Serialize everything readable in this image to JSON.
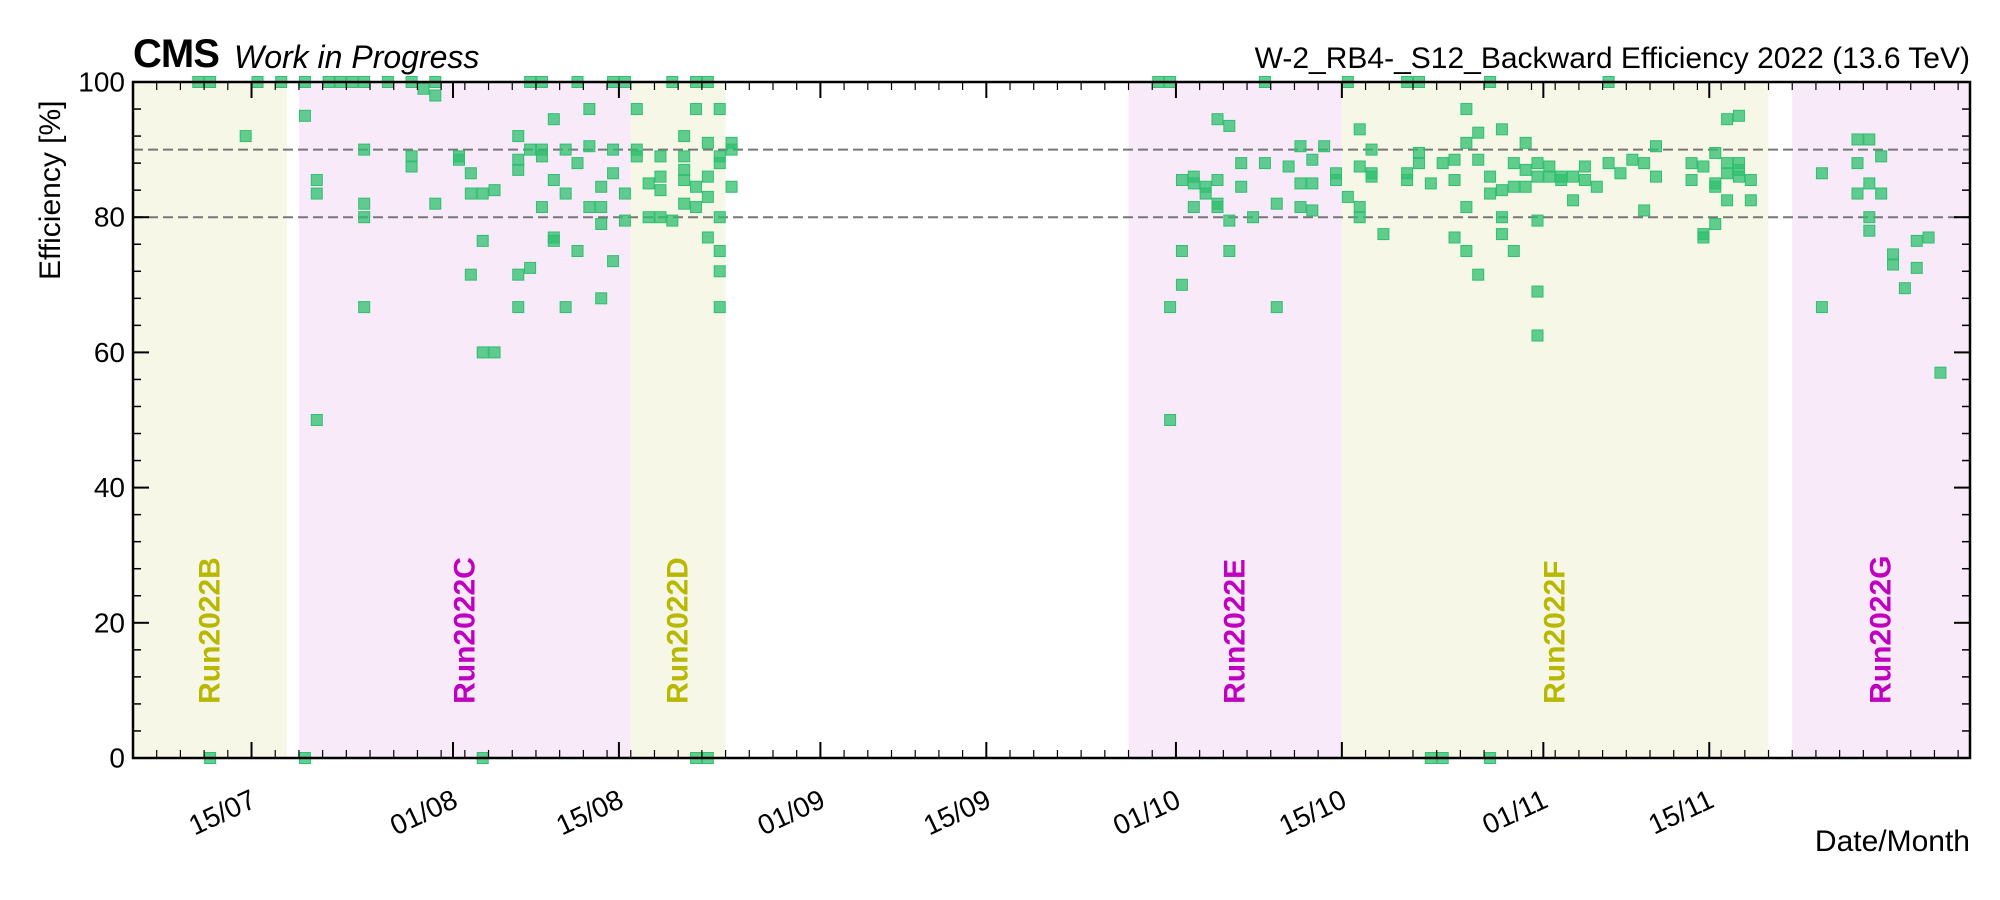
{
  "header": {
    "experiment": "CMS",
    "status": "Work in Progress",
    "title": "W-2_RB4-_S12_Backward Efficiency 2022 (13.6 TeV)"
  },
  "chart_data": {
    "type": "scatter",
    "title": "W-2_RB4-_S12_Backward Efficiency 2022 (13.6 TeV)",
    "xlabel": "Date/Month",
    "ylabel": "Efficiency [%]",
    "ylim": [
      0,
      100
    ],
    "xlim": [
      "2022-07-05",
      "2022-12-07"
    ],
    "yticks": [
      0,
      20,
      40,
      60,
      80,
      100
    ],
    "xticks": [
      {
        "date": "2022-07-15",
        "label": "15/07"
      },
      {
        "date": "2022-08-01",
        "label": "01/08"
      },
      {
        "date": "2022-08-15",
        "label": "15/08"
      },
      {
        "date": "2022-09-01",
        "label": "01/09"
      },
      {
        "date": "2022-09-15",
        "label": "15/09"
      },
      {
        "date": "2022-10-01",
        "label": "01/10"
      },
      {
        "date": "2022-10-15",
        "label": "15/10"
      },
      {
        "date": "2022-11-01",
        "label": "01/11"
      },
      {
        "date": "2022-11-15",
        "label": "15/11"
      }
    ],
    "reference_lines": [
      80,
      90
    ],
    "colors": {
      "marker": "#2fbf6f",
      "run_odd_text": "#b8b800",
      "run_even_text": "#c000c0",
      "run_odd_band": "#f7f7e8",
      "run_even_band": "#f8eaf8",
      "ref_line": "#777777"
    },
    "runs": [
      {
        "name": "Run2022B",
        "start": "2022-07-05",
        "end": "2022-07-18",
        "style": "odd"
      },
      {
        "name": "Run2022C",
        "start": "2022-07-19",
        "end": "2022-08-16",
        "style": "even"
      },
      {
        "name": "Run2022D",
        "start": "2022-08-16",
        "end": "2022-08-24",
        "style": "odd"
      },
      {
        "name": "Run2022E",
        "start": "2022-09-27",
        "end": "2022-10-15",
        "style": "even"
      },
      {
        "name": "Run2022F",
        "start": "2022-10-15",
        "end": "2022-11-20",
        "style": "odd"
      },
      {
        "name": "Run2022G",
        "start": "2022-11-22",
        "end": "2022-12-07",
        "style": "even"
      }
    ],
    "series": [
      {
        "points": [
          [
            "2022-07-10",
            100
          ],
          [
            "2022-07-11",
            100
          ],
          [
            "2022-07-15",
            100
          ],
          [
            "2022-07-11",
            0
          ],
          [
            "2022-07-14",
            92
          ],
          [
            "2022-07-17",
            100
          ],
          [
            "2022-07-19",
            100
          ],
          [
            "2022-07-19",
            0
          ],
          [
            "2022-07-19",
            95
          ],
          [
            "2022-07-20",
            50
          ],
          [
            "2022-07-20",
            85.5
          ],
          [
            "2022-07-20",
            83.5
          ],
          [
            "2022-07-21",
            100
          ],
          [
            "2022-07-22",
            100
          ],
          [
            "2022-07-23",
            100
          ],
          [
            "2022-07-24",
            100
          ],
          [
            "2022-07-24",
            90
          ],
          [
            "2022-07-24",
            82
          ],
          [
            "2022-07-24",
            80
          ],
          [
            "2022-07-24",
            66.7
          ],
          [
            "2022-07-26",
            100
          ],
          [
            "2022-07-28",
            100
          ],
          [
            "2022-07-28",
            89
          ],
          [
            "2022-07-28",
            87.5
          ],
          [
            "2022-07-29",
            99
          ],
          [
            "2022-07-30",
            100
          ],
          [
            "2022-07-30",
            98
          ],
          [
            "2022-07-30",
            82
          ],
          [
            "2022-08-01",
            89
          ],
          [
            "2022-08-01",
            88.5
          ],
          [
            "2022-08-02",
            71.5
          ],
          [
            "2022-08-02",
            86.5
          ],
          [
            "2022-08-02",
            83.5
          ],
          [
            "2022-08-03",
            83.5
          ],
          [
            "2022-08-03",
            76.5
          ],
          [
            "2022-08-03",
            0
          ],
          [
            "2022-08-03",
            60
          ],
          [
            "2022-08-04",
            60
          ],
          [
            "2022-08-04",
            84
          ],
          [
            "2022-08-06",
            92
          ],
          [
            "2022-08-06",
            71.5
          ],
          [
            "2022-08-06",
            66.7
          ],
          [
            "2022-08-06",
            87
          ],
          [
            "2022-08-06",
            88.5
          ],
          [
            "2022-08-07",
            90
          ],
          [
            "2022-08-07",
            100
          ],
          [
            "2022-08-07",
            72.5
          ],
          [
            "2022-08-08",
            81.5
          ],
          [
            "2022-08-08",
            90
          ],
          [
            "2022-08-08",
            89
          ],
          [
            "2022-08-08",
            100
          ],
          [
            "2022-08-09",
            76.5
          ],
          [
            "2022-08-09",
            77
          ],
          [
            "2022-08-09",
            94.5
          ],
          [
            "2022-08-09",
            85.5
          ],
          [
            "2022-08-10",
            66.7
          ],
          [
            "2022-08-10",
            83.5
          ],
          [
            "2022-08-10",
            90
          ],
          [
            "2022-08-11",
            88
          ],
          [
            "2022-08-11",
            100
          ],
          [
            "2022-08-11",
            75
          ],
          [
            "2022-08-12",
            96
          ],
          [
            "2022-08-12",
            81.5
          ],
          [
            "2022-08-12",
            90.5
          ],
          [
            "2022-08-13",
            84.5
          ],
          [
            "2022-08-13",
            68
          ],
          [
            "2022-08-13",
            81.5
          ],
          [
            "2022-08-13",
            79
          ],
          [
            "2022-08-14",
            73.5
          ],
          [
            "2022-08-14",
            100
          ],
          [
            "2022-08-14",
            90
          ],
          [
            "2022-08-14",
            86.5
          ],
          [
            "2022-08-15",
            79.5
          ],
          [
            "2022-08-15",
            83.5
          ],
          [
            "2022-08-15",
            100
          ],
          [
            "2022-08-16",
            90
          ],
          [
            "2022-08-16",
            89
          ],
          [
            "2022-08-16",
            96
          ],
          [
            "2022-08-17",
            85
          ],
          [
            "2022-08-17",
            80
          ],
          [
            "2022-08-18",
            89
          ],
          [
            "2022-08-18",
            80
          ],
          [
            "2022-08-18",
            84
          ],
          [
            "2022-08-18",
            86
          ],
          [
            "2022-08-19",
            100
          ],
          [
            "2022-08-19",
            79.5
          ],
          [
            "2022-08-20",
            89
          ],
          [
            "2022-08-20",
            87
          ],
          [
            "2022-08-20",
            92
          ],
          [
            "2022-08-20",
            85.5
          ],
          [
            "2022-08-20",
            82
          ],
          [
            "2022-08-21",
            100
          ],
          [
            "2022-08-21",
            96
          ],
          [
            "2022-08-21",
            84.5
          ],
          [
            "2022-08-21",
            81.5
          ],
          [
            "2022-08-21",
            0
          ],
          [
            "2022-08-22",
            83
          ],
          [
            "2022-08-22",
            77
          ],
          [
            "2022-08-22",
            86
          ],
          [
            "2022-08-22",
            91
          ],
          [
            "2022-08-22",
            100
          ],
          [
            "2022-08-22",
            0
          ],
          [
            "2022-08-23",
            96
          ],
          [
            "2022-08-23",
            89
          ],
          [
            "2022-08-23",
            88
          ],
          [
            "2022-08-23",
            80
          ],
          [
            "2022-08-23",
            75
          ],
          [
            "2022-08-23",
            72
          ],
          [
            "2022-08-23",
            66.7
          ],
          [
            "2022-08-24",
            90
          ],
          [
            "2022-08-24",
            91
          ],
          [
            "2022-08-24",
            84.5
          ],
          [
            "2022-09-29",
            100
          ],
          [
            "2022-09-30",
            100
          ],
          [
            "2022-09-30",
            50
          ],
          [
            "2022-09-30",
            66.7
          ],
          [
            "2022-10-01",
            70
          ],
          [
            "2022-10-01",
            75
          ],
          [
            "2022-10-01",
            85.5
          ],
          [
            "2022-10-02",
            81.5
          ],
          [
            "2022-10-02",
            86
          ],
          [
            "2022-10-02",
            85
          ],
          [
            "2022-10-03",
            84.5
          ],
          [
            "2022-10-03",
            83.5
          ],
          [
            "2022-10-04",
            94.5
          ],
          [
            "2022-10-04",
            85.5
          ],
          [
            "2022-10-04",
            81.5
          ],
          [
            "2022-10-04",
            82
          ],
          [
            "2022-10-05",
            75
          ],
          [
            "2022-10-05",
            79.5
          ],
          [
            "2022-10-05",
            93.5
          ],
          [
            "2022-10-06",
            84.5
          ],
          [
            "2022-10-06",
            88
          ],
          [
            "2022-10-07",
            80
          ],
          [
            "2022-10-08",
            100
          ],
          [
            "2022-10-08",
            88
          ],
          [
            "2022-10-09",
            66.7
          ],
          [
            "2022-10-09",
            82
          ],
          [
            "2022-10-10",
            87.5
          ],
          [
            "2022-10-11",
            90.5
          ],
          [
            "2022-10-11",
            85
          ],
          [
            "2022-10-11",
            81.5
          ],
          [
            "2022-10-12",
            88.5
          ],
          [
            "2022-10-12",
            85
          ],
          [
            "2022-10-12",
            81
          ],
          [
            "2022-10-13",
            90.5
          ],
          [
            "2022-10-14",
            86.5
          ],
          [
            "2022-10-14",
            85.5
          ],
          [
            "2022-10-15",
            83
          ],
          [
            "2022-10-15",
            100
          ],
          [
            "2022-10-16",
            93
          ],
          [
            "2022-10-16",
            87.5
          ],
          [
            "2022-10-16",
            81.5
          ],
          [
            "2022-10-16",
            80
          ],
          [
            "2022-10-17",
            86.5
          ],
          [
            "2022-10-17",
            90
          ],
          [
            "2022-10-17",
            86
          ],
          [
            "2022-10-18",
            77.5
          ],
          [
            "2022-10-20",
            100
          ],
          [
            "2022-10-20",
            86.5
          ],
          [
            "2022-10-20",
            85.5
          ],
          [
            "2022-10-21",
            88
          ],
          [
            "2022-10-21",
            89.5
          ],
          [
            "2022-10-21",
            100
          ],
          [
            "2022-10-22",
            85
          ],
          [
            "2022-10-22",
            0
          ],
          [
            "2022-10-23",
            0
          ],
          [
            "2022-10-23",
            88
          ],
          [
            "2022-10-24",
            77
          ],
          [
            "2022-10-24",
            88.5
          ],
          [
            "2022-10-24",
            85.5
          ],
          [
            "2022-10-25",
            96
          ],
          [
            "2022-10-25",
            91
          ],
          [
            "2022-10-25",
            81.5
          ],
          [
            "2022-10-25",
            75
          ],
          [
            "2022-10-26",
            71.5
          ],
          [
            "2022-10-26",
            88.5
          ],
          [
            "2022-10-26",
            92.5
          ],
          [
            "2022-10-27",
            100
          ],
          [
            "2022-10-27",
            86
          ],
          [
            "2022-10-27",
            83.5
          ],
          [
            "2022-10-27",
            0
          ],
          [
            "2022-10-28",
            84
          ],
          [
            "2022-10-28",
            80
          ],
          [
            "2022-10-28",
            77.5
          ],
          [
            "2022-10-28",
            93
          ],
          [
            "2022-10-29",
            88
          ],
          [
            "2022-10-29",
            84.5
          ],
          [
            "2022-10-29",
            75
          ],
          [
            "2022-10-30",
            91
          ],
          [
            "2022-10-30",
            87
          ],
          [
            "2022-10-30",
            84.5
          ],
          [
            "2022-10-31",
            88
          ],
          [
            "2022-10-31",
            86
          ],
          [
            "2022-10-31",
            79.5
          ],
          [
            "2022-10-31",
            69
          ],
          [
            "2022-10-31",
            62.5
          ],
          [
            "2022-11-01",
            87.5
          ],
          [
            "2022-11-01",
            86
          ],
          [
            "2022-11-02",
            85.5
          ],
          [
            "2022-11-02",
            86
          ],
          [
            "2022-11-03",
            86
          ],
          [
            "2022-11-03",
            82.5
          ],
          [
            "2022-11-04",
            85.5
          ],
          [
            "2022-11-04",
            87.5
          ],
          [
            "2022-11-05",
            84.5
          ],
          [
            "2022-11-06",
            88
          ],
          [
            "2022-11-06",
            100
          ],
          [
            "2022-11-07",
            86.5
          ],
          [
            "2022-11-08",
            88.5
          ],
          [
            "2022-11-09",
            81
          ],
          [
            "2022-11-09",
            88
          ],
          [
            "2022-11-10",
            90.5
          ],
          [
            "2022-11-10",
            86
          ],
          [
            "2022-11-13",
            88
          ],
          [
            "2022-11-13",
            85.5
          ],
          [
            "2022-11-14",
            77.5
          ],
          [
            "2022-11-14",
            77
          ],
          [
            "2022-11-14",
            87.5
          ],
          [
            "2022-11-15",
            89.5
          ],
          [
            "2022-11-15",
            85
          ],
          [
            "2022-11-15",
            84.5
          ],
          [
            "2022-11-15",
            79
          ],
          [
            "2022-11-16",
            88
          ],
          [
            "2022-11-16",
            86.5
          ],
          [
            "2022-11-16",
            82.5
          ],
          [
            "2022-11-16",
            94.5
          ],
          [
            "2022-11-17",
            88
          ],
          [
            "2022-11-17",
            87
          ],
          [
            "2022-11-17",
            86
          ],
          [
            "2022-11-17",
            95
          ],
          [
            "2022-11-18",
            85.5
          ],
          [
            "2022-11-18",
            82.5
          ],
          [
            "2022-11-24",
            86.5
          ],
          [
            "2022-11-24",
            66.7
          ],
          [
            "2022-11-27",
            83.5
          ],
          [
            "2022-11-27",
            88
          ],
          [
            "2022-11-27",
            91.5
          ],
          [
            "2022-11-28",
            91.5
          ],
          [
            "2022-11-28",
            85
          ],
          [
            "2022-11-28",
            80
          ],
          [
            "2022-11-28",
            78
          ],
          [
            "2022-11-29",
            89
          ],
          [
            "2022-11-29",
            83.5
          ],
          [
            "2022-11-30",
            74.5
          ],
          [
            "2022-11-30",
            73
          ],
          [
            "2022-12-01",
            69.5
          ],
          [
            "2022-12-02",
            76.5
          ],
          [
            "2022-12-02",
            72.5
          ],
          [
            "2022-12-03",
            77
          ],
          [
            "2022-12-04",
            57
          ]
        ]
      }
    ]
  }
}
